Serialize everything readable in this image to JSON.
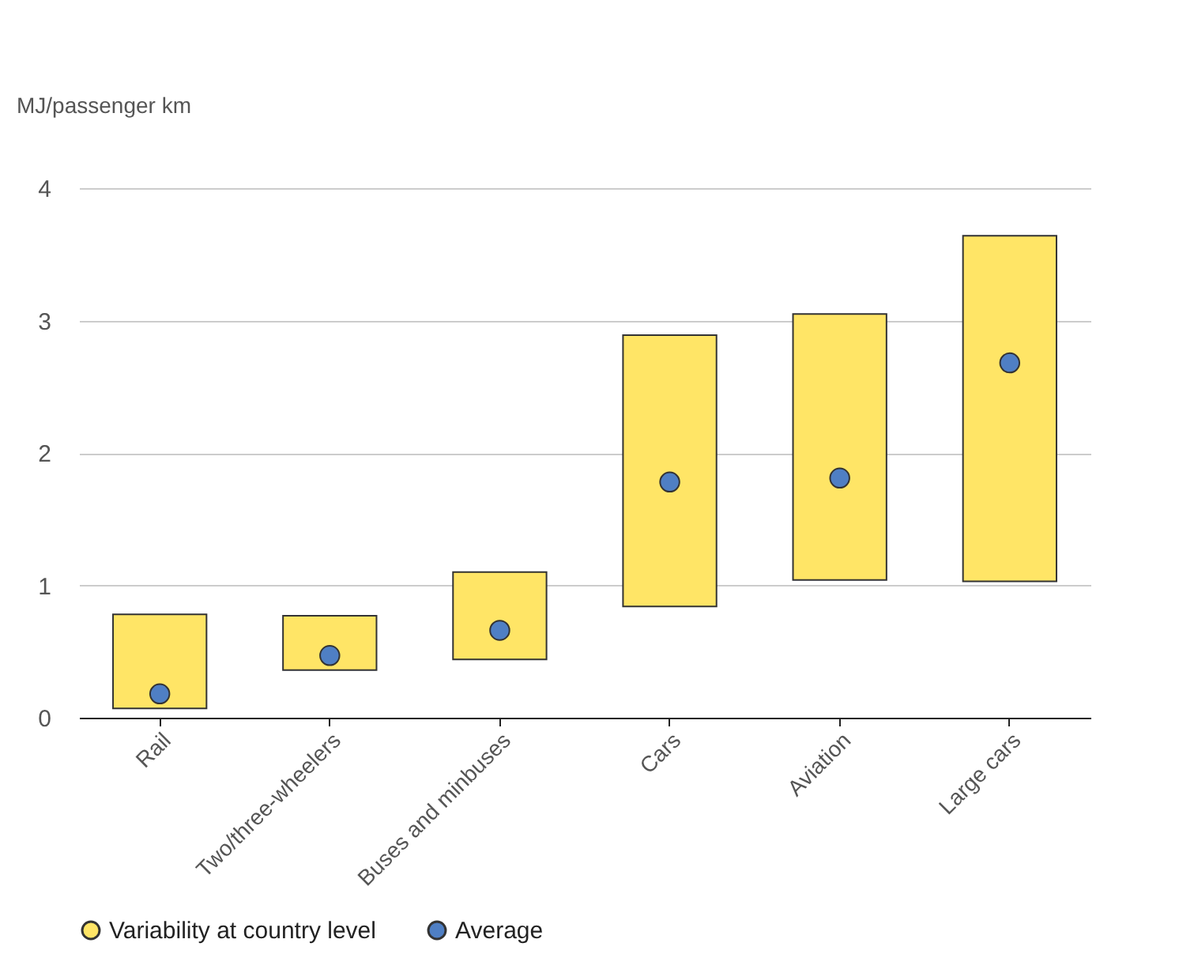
{
  "chart_data": {
    "type": "bar",
    "ylabel": "MJ/passenger km",
    "categories": [
      "Rail",
      "Two/three-wheelers",
      "Buses and minbuses",
      "Cars",
      "Aviation",
      "Large cars"
    ],
    "series": [
      {
        "name": "Variability at country level",
        "color": "#ffe566",
        "base": [
          0.07,
          0.36,
          0.44,
          0.84,
          1.04,
          1.03
        ],
        "values": [
          0.71,
          0.41,
          0.66,
          2.05,
          2.01,
          2.61
        ]
      },
      {
        "name": "Average",
        "type": "scatter",
        "color": "#4f7fc4",
        "values": [
          0.18,
          0.47,
          0.66,
          1.78,
          1.81,
          2.68
        ]
      }
    ],
    "ylim": [
      0,
      4
    ],
    "yticks": [
      0,
      1,
      2,
      3,
      4
    ],
    "grid": "y",
    "legend": "bottom left",
    "marker": "circle"
  }
}
